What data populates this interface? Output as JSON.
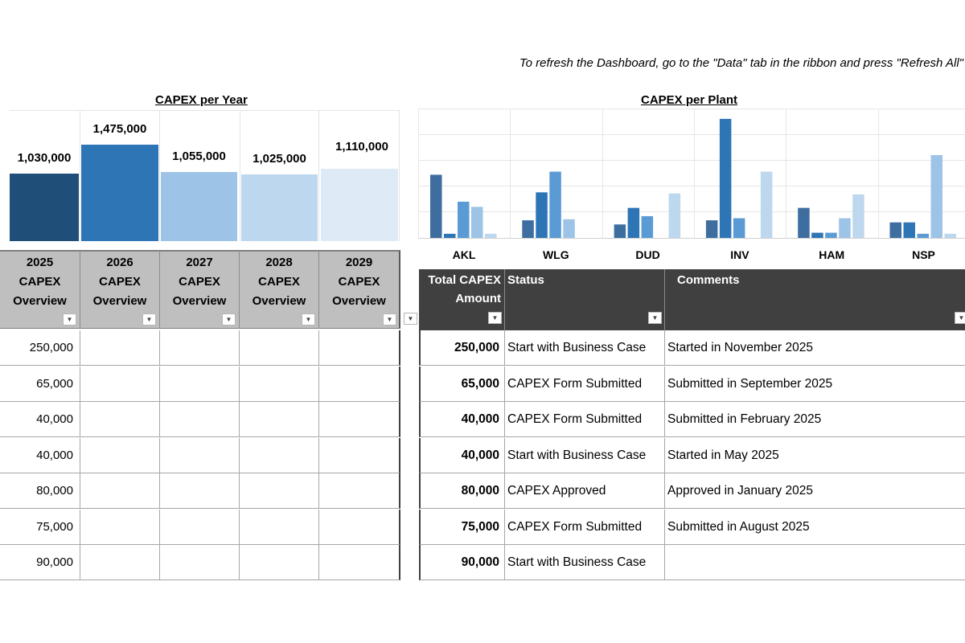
{
  "note": "To refresh the Dashboard, go to the \"Data\" tab in the ribbon and press \"Refresh All\"",
  "year_chart": {
    "title": "CAPEX per Year",
    "bars": [
      {
        "value": 1030000,
        "label": "1,030,000",
        "color": "#1f4e79"
      },
      {
        "value": 1475000,
        "label": "1,475,000",
        "color": "#2e75b6"
      },
      {
        "value": 1055000,
        "label": "1,055,000",
        "color": "#9dc3e6"
      },
      {
        "value": 1025000,
        "label": "1,025,000",
        "color": "#bdd7ee"
      },
      {
        "value": 1110000,
        "label": "1,110,000",
        "color": "#deebf7"
      }
    ]
  },
  "chart_data": {
    "type": "bar",
    "title": "CAPEX per Plant",
    "categories": [
      "AKL",
      "WLG",
      "DUD",
      "INV",
      "HAM",
      "NSP"
    ],
    "series": [
      {
        "color": "#3d6e9f",
        "values": [
          6.1,
          1.7,
          1.3,
          1.7,
          2.9,
          1.5
        ]
      },
      {
        "color": "#2e75b6",
        "values": [
          0.4,
          4.4,
          2.9,
          11.5,
          0.5,
          1.5
        ]
      },
      {
        "color": "#5b9bd5",
        "values": [
          3.5,
          6.4,
          2.1,
          1.9,
          0.5,
          0.4
        ]
      },
      {
        "color": "#9dc3e6",
        "values": [
          3.0,
          1.8,
          0.0,
          0.0,
          1.9,
          8.0
        ]
      },
      {
        "color": "#bdd7ee",
        "values": [
          0.4,
          0.0,
          4.3,
          6.4,
          4.2,
          0.4
        ]
      }
    ],
    "ylim": [
      0,
      12.5
    ],
    "grid": true
  },
  "left_table": {
    "headers": [
      {
        "year": "2025",
        "l1": "CAPEX",
        "l2": "Overview"
      },
      {
        "year": "2026",
        "l1": "CAPEX",
        "l2": "Overview"
      },
      {
        "year": "2027",
        "l1": "CAPEX",
        "l2": "Overview"
      },
      {
        "year": "2028",
        "l1": "CAPEX",
        "l2": "Overview"
      },
      {
        "year": "2029",
        "l1": "CAPEX",
        "l2": "Overview"
      }
    ],
    "rows": [
      [
        "250,000",
        "",
        "",
        "",
        ""
      ],
      [
        "65,000",
        "",
        "",
        "",
        ""
      ],
      [
        "40,000",
        "",
        "",
        "",
        ""
      ],
      [
        "40,000",
        "",
        "",
        "",
        ""
      ],
      [
        "80,000",
        "",
        "",
        "",
        ""
      ],
      [
        "75,000",
        "",
        "",
        "",
        ""
      ],
      [
        "90,000",
        "",
        "",
        "",
        ""
      ]
    ]
  },
  "right_table": {
    "headers": {
      "amount_l1": "Total CAPEX",
      "amount_l2": "Amount",
      "status": "Status",
      "comments": "Comments"
    },
    "rows": [
      {
        "amount": "250,000",
        "status": "Start with Business Case",
        "comment": "Started in November 2025"
      },
      {
        "amount": "65,000",
        "status": "CAPEX Form Submitted",
        "comment": "Submitted in September 2025"
      },
      {
        "amount": "40,000",
        "status": "CAPEX Form Submitted",
        "comment": "Submitted in February 2025"
      },
      {
        "amount": "40,000",
        "status": "Start with Business Case",
        "comment": "Started in May 2025"
      },
      {
        "amount": "80,000",
        "status": "CAPEX Approved",
        "comment": "Approved in January 2025"
      },
      {
        "amount": "75,000",
        "status": "CAPEX Form Submitted",
        "comment": "Submitted in August 2025"
      },
      {
        "amount": "90,000",
        "status": "Start with Business Case",
        "comment": ""
      }
    ]
  }
}
